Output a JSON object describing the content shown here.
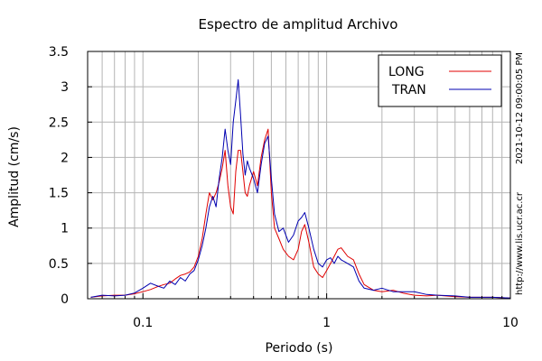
{
  "chart_data": {
    "type": "line",
    "title": "Espectro de amplitud Archivo",
    "xlabel": "Periodo (s)",
    "ylabel": "Amplitud (cm/s)",
    "xscale": "log",
    "xlim": [
      0.05,
      10
    ],
    "ylim": [
      0,
      3.5
    ],
    "xticks": [
      {
        "value": 0.1,
        "label": "0.1"
      },
      {
        "value": 1,
        "label": "1"
      },
      {
        "value": 10,
        "label": "10"
      }
    ],
    "yticks": [
      {
        "value": 0,
        "label": "0"
      },
      {
        "value": 0.5,
        "label": "0.5"
      },
      {
        "value": 1,
        "label": "1"
      },
      {
        "value": 1.5,
        "label": "1.5"
      },
      {
        "value": 2,
        "label": "2"
      },
      {
        "value": 2.5,
        "label": "2.5"
      },
      {
        "value": 3,
        "label": "3"
      },
      {
        "value": 3.5,
        "label": "3.5"
      }
    ],
    "grid": true,
    "legend_position": "top-right",
    "side_labels": [
      "2021-10-12 09:00:05 PM",
      "http://www.lis.ucr.ac.cr"
    ],
    "series": [
      {
        "name": "LONG",
        "color": "#e00000",
        "points": [
          [
            0.052,
            0.02
          ],
          [
            0.06,
            0.04
          ],
          [
            0.07,
            0.05
          ],
          [
            0.08,
            0.05
          ],
          [
            0.09,
            0.07
          ],
          [
            0.1,
            0.1
          ],
          [
            0.11,
            0.13
          ],
          [
            0.12,
            0.17
          ],
          [
            0.13,
            0.2
          ],
          [
            0.14,
            0.22
          ],
          [
            0.15,
            0.28
          ],
          [
            0.16,
            0.33
          ],
          [
            0.17,
            0.35
          ],
          [
            0.18,
            0.38
          ],
          [
            0.19,
            0.45
          ],
          [
            0.2,
            0.6
          ],
          [
            0.21,
            0.85
          ],
          [
            0.22,
            1.2
          ],
          [
            0.23,
            1.5
          ],
          [
            0.24,
            1.4
          ],
          [
            0.25,
            1.5
          ],
          [
            0.26,
            1.65
          ],
          [
            0.27,
            1.85
          ],
          [
            0.28,
            2.1
          ],
          [
            0.29,
            1.6
          ],
          [
            0.3,
            1.3
          ],
          [
            0.31,
            1.2
          ],
          [
            0.32,
            1.8
          ],
          [
            0.33,
            2.1
          ],
          [
            0.34,
            2.1
          ],
          [
            0.35,
            1.8
          ],
          [
            0.36,
            1.5
          ],
          [
            0.37,
            1.45
          ],
          [
            0.38,
            1.6
          ],
          [
            0.4,
            1.8
          ],
          [
            0.42,
            1.6
          ],
          [
            0.44,
            2.0
          ],
          [
            0.46,
            2.25
          ],
          [
            0.48,
            2.4
          ],
          [
            0.5,
            1.5
          ],
          [
            0.52,
            1.0
          ],
          [
            0.55,
            0.85
          ],
          [
            0.58,
            0.7
          ],
          [
            0.62,
            0.6
          ],
          [
            0.66,
            0.55
          ],
          [
            0.7,
            0.7
          ],
          [
            0.73,
            0.95
          ],
          [
            0.76,
            1.05
          ],
          [
            0.8,
            0.8
          ],
          [
            0.85,
            0.45
          ],
          [
            0.9,
            0.35
          ],
          [
            0.95,
            0.3
          ],
          [
            1.0,
            0.4
          ],
          [
            1.05,
            0.5
          ],
          [
            1.1,
            0.6
          ],
          [
            1.15,
            0.7
          ],
          [
            1.2,
            0.72
          ],
          [
            1.3,
            0.6
          ],
          [
            1.4,
            0.55
          ],
          [
            1.5,
            0.35
          ],
          [
            1.6,
            0.2
          ],
          [
            1.8,
            0.12
          ],
          [
            2.0,
            0.1
          ],
          [
            2.3,
            0.12
          ],
          [
            2.6,
            0.08
          ],
          [
            3.0,
            0.05
          ],
          [
            3.5,
            0.04
          ],
          [
            4.0,
            0.05
          ],
          [
            5.0,
            0.03
          ],
          [
            6.0,
            0.02
          ],
          [
            8.0,
            0.02
          ],
          [
            10.0,
            0.01
          ]
        ]
      },
      {
        "name": "TRAN",
        "color": "#0000b0",
        "points": [
          [
            0.052,
            0.02
          ],
          [
            0.06,
            0.05
          ],
          [
            0.07,
            0.04
          ],
          [
            0.08,
            0.05
          ],
          [
            0.09,
            0.08
          ],
          [
            0.1,
            0.15
          ],
          [
            0.11,
            0.22
          ],
          [
            0.12,
            0.18
          ],
          [
            0.13,
            0.15
          ],
          [
            0.14,
            0.25
          ],
          [
            0.15,
            0.2
          ],
          [
            0.16,
            0.3
          ],
          [
            0.17,
            0.25
          ],
          [
            0.18,
            0.35
          ],
          [
            0.19,
            0.4
          ],
          [
            0.2,
            0.55
          ],
          [
            0.21,
            0.75
          ],
          [
            0.22,
            1.0
          ],
          [
            0.23,
            1.3
          ],
          [
            0.24,
            1.45
          ],
          [
            0.25,
            1.3
          ],
          [
            0.26,
            1.7
          ],
          [
            0.27,
            2.0
          ],
          [
            0.28,
            2.4
          ],
          [
            0.29,
            2.1
          ],
          [
            0.3,
            1.9
          ],
          [
            0.31,
            2.5
          ],
          [
            0.32,
            2.8
          ],
          [
            0.33,
            3.1
          ],
          [
            0.34,
            2.6
          ],
          [
            0.35,
            2.05
          ],
          [
            0.36,
            1.75
          ],
          [
            0.37,
            1.95
          ],
          [
            0.38,
            1.85
          ],
          [
            0.4,
            1.7
          ],
          [
            0.42,
            1.5
          ],
          [
            0.44,
            1.9
          ],
          [
            0.46,
            2.2
          ],
          [
            0.48,
            2.3
          ],
          [
            0.5,
            1.7
          ],
          [
            0.52,
            1.2
          ],
          [
            0.55,
            0.95
          ],
          [
            0.58,
            1.0
          ],
          [
            0.62,
            0.8
          ],
          [
            0.66,
            0.9
          ],
          [
            0.7,
            1.1
          ],
          [
            0.73,
            1.15
          ],
          [
            0.76,
            1.22
          ],
          [
            0.8,
            1.0
          ],
          [
            0.85,
            0.7
          ],
          [
            0.9,
            0.5
          ],
          [
            0.95,
            0.45
          ],
          [
            1.0,
            0.55
          ],
          [
            1.05,
            0.58
          ],
          [
            1.1,
            0.5
          ],
          [
            1.15,
            0.6
          ],
          [
            1.2,
            0.55
          ],
          [
            1.3,
            0.5
          ],
          [
            1.4,
            0.45
          ],
          [
            1.5,
            0.25
          ],
          [
            1.6,
            0.15
          ],
          [
            1.8,
            0.12
          ],
          [
            2.0,
            0.15
          ],
          [
            2.3,
            0.1
          ],
          [
            2.6,
            0.1
          ],
          [
            3.0,
            0.1
          ],
          [
            3.5,
            0.06
          ],
          [
            4.0,
            0.05
          ],
          [
            5.0,
            0.04
          ],
          [
            6.0,
            0.02
          ],
          [
            8.0,
            0.02
          ],
          [
            10.0,
            0.01
          ]
        ]
      }
    ]
  }
}
